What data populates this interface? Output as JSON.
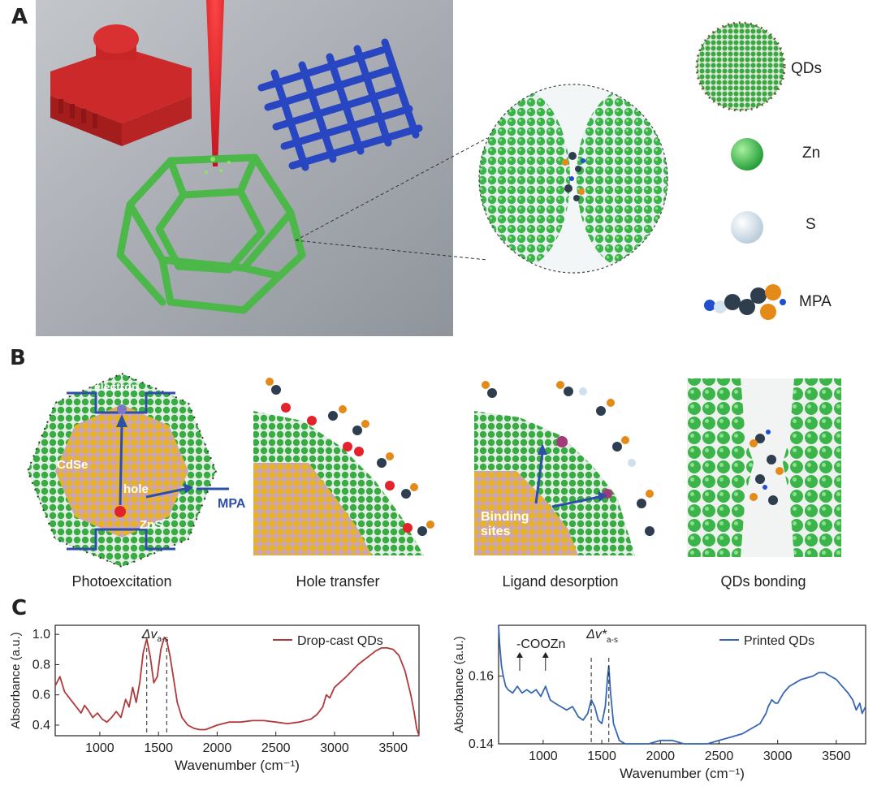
{
  "panels": {
    "a": {
      "letter": "A",
      "legend": [
        {
          "name": "qds",
          "label": "QDs"
        },
        {
          "name": "zn",
          "label": "Zn"
        },
        {
          "name": "s",
          "label": "S"
        },
        {
          "name": "mpa",
          "label": "MPA"
        }
      ]
    },
    "b": {
      "letter": "B",
      "labels": {
        "electron": "electron",
        "cdse": "CdSe",
        "hole": "hole",
        "zns": "ZnS",
        "mpa": "MPA",
        "binding_sites_1": "Binding",
        "binding_sites_2": "sites"
      },
      "captions": [
        "Photoexcitation",
        "Hole transfer",
        "Ligand desorption",
        "QDs bonding"
      ]
    },
    "c": {
      "letter": "C"
    }
  },
  "colors": {
    "dropcast": "#b03a3a",
    "printed": "#3567b5",
    "zn": "#3bb54a",
    "s": "#dfe9f2",
    "core": "#e8b322",
    "ring": "#2d4fa8",
    "laser": "#e8262e",
    "lattice_blue": "#2946c2"
  },
  "chart_data": [
    {
      "type": "line",
      "xlabel": "Wavenumber (cm⁻¹)",
      "ylabel": "Absorbance (a.u.)",
      "xlim": [
        620,
        3720
      ],
      "ylim": [
        0.33,
        1.06
      ],
      "xticks": [
        1000,
        1500,
        2000,
        2500,
        3000,
        3500
      ],
      "yticks": [
        0.4,
        0.6,
        0.8,
        1.0
      ],
      "ytick_labels": [
        "0.4",
        "0.6",
        "0.8",
        "1.0"
      ],
      "legend": {
        "label": "Drop-cast QDs",
        "position": "top-right"
      },
      "annotations": [
        {
          "text": "Δv",
          "sub": "a-s",
          "x": [
            1400,
            1570
          ]
        }
      ],
      "series": [
        {
          "x": [
            620,
            660,
            700,
            750,
            800,
            840,
            870,
            900,
            940,
            980,
            1020,
            1060,
            1100,
            1140,
            1180,
            1220,
            1250,
            1280,
            1310,
            1340,
            1370,
            1400,
            1430,
            1460,
            1490,
            1520,
            1550,
            1570,
            1600,
            1630,
            1660,
            1700,
            1750,
            1800,
            1850,
            1900,
            2000,
            2100,
            2200,
            2300,
            2400,
            2500,
            2600,
            2700,
            2800,
            2850,
            2900,
            2930,
            2960,
            3000,
            3100,
            3200,
            3300,
            3350,
            3400,
            3450,
            3500,
            3550,
            3600,
            3650,
            3680,
            3700,
            3720
          ],
          "y": [
            0.66,
            0.72,
            0.62,
            0.57,
            0.52,
            0.48,
            0.53,
            0.5,
            0.45,
            0.48,
            0.44,
            0.42,
            0.45,
            0.49,
            0.45,
            0.57,
            0.52,
            0.65,
            0.55,
            0.68,
            0.88,
            0.97,
            0.85,
            0.68,
            0.72,
            0.9,
            0.98,
            0.96,
            0.85,
            0.7,
            0.55,
            0.45,
            0.4,
            0.38,
            0.37,
            0.37,
            0.4,
            0.42,
            0.42,
            0.43,
            0.43,
            0.42,
            0.41,
            0.42,
            0.44,
            0.47,
            0.52,
            0.6,
            0.58,
            0.65,
            0.72,
            0.8,
            0.86,
            0.89,
            0.91,
            0.91,
            0.9,
            0.86,
            0.76,
            0.6,
            0.48,
            0.38,
            0.32
          ]
        }
      ]
    },
    {
      "type": "line",
      "xlabel": "Wavenumber (cm⁻¹)",
      "ylabel": "Absorbance (a.u.)",
      "xlim": [
        620,
        3750
      ],
      "ylim": [
        0.14,
        0.175
      ],
      "xticks": [
        1000,
        1500,
        2000,
        2500,
        3000,
        3500
      ],
      "yticks": [
        0.14,
        0.16
      ],
      "ytick_labels": [
        "0.14",
        "0.16"
      ],
      "legend": {
        "label": "Printed QDs",
        "position": "top-right"
      },
      "annotations": [
        {
          "text": "-COOZn",
          "x": [
            800,
            1020
          ]
        },
        {
          "text": "Δv*",
          "sub": "a-s",
          "x": [
            1410,
            1560
          ]
        }
      ],
      "series": [
        {
          "x": [
            620,
            630,
            645,
            660,
            680,
            700,
            740,
            780,
            820,
            860,
            900,
            940,
            980,
            1020,
            1060,
            1100,
            1150,
            1200,
            1250,
            1300,
            1340,
            1380,
            1410,
            1440,
            1470,
            1500,
            1530,
            1550,
            1560,
            1575,
            1600,
            1650,
            1700,
            1750,
            1800,
            1900,
            2000,
            2100,
            2200,
            2300,
            2400,
            2500,
            2600,
            2700,
            2800,
            2850,
            2900,
            2920,
            2950,
            2980,
            3000,
            3050,
            3100,
            3200,
            3300,
            3350,
            3400,
            3450,
            3500,
            3550,
            3600,
            3640,
            3670,
            3700,
            3720,
            3750
          ],
          "y": [
            0.175,
            0.169,
            0.163,
            0.16,
            0.157,
            0.156,
            0.155,
            0.157,
            0.155,
            0.156,
            0.155,
            0.156,
            0.154,
            0.157,
            0.153,
            0.152,
            0.151,
            0.15,
            0.151,
            0.148,
            0.147,
            0.149,
            0.153,
            0.151,
            0.147,
            0.146,
            0.151,
            0.16,
            0.163,
            0.155,
            0.146,
            0.141,
            0.14,
            0.14,
            0.14,
            0.14,
            0.141,
            0.141,
            0.14,
            0.14,
            0.14,
            0.141,
            0.142,
            0.143,
            0.145,
            0.146,
            0.149,
            0.151,
            0.153,
            0.152,
            0.152,
            0.155,
            0.157,
            0.159,
            0.16,
            0.161,
            0.161,
            0.16,
            0.159,
            0.157,
            0.155,
            0.153,
            0.15,
            0.152,
            0.149,
            0.151
          ]
        }
      ]
    }
  ]
}
